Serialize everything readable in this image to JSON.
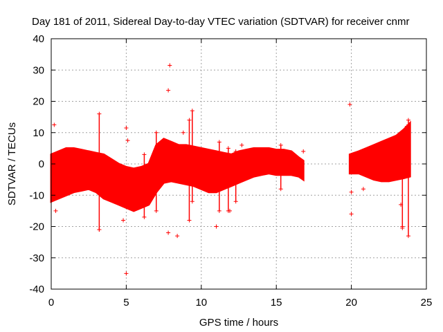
{
  "chart_data": {
    "type": "scatter",
    "title": "Day 181 of 2011, Sidereal Day-to-day VTEC variation (SDTVAR) for receiver cnmr",
    "xlabel": "GPS time / hours",
    "ylabel": "SDTVAR / TECUs",
    "xlim": [
      0,
      25
    ],
    "ylim": [
      -40,
      40
    ],
    "xticks": [
      0,
      5,
      10,
      15,
      20,
      25
    ],
    "yticks": [
      -40,
      -30,
      -20,
      -10,
      0,
      10,
      20,
      30,
      40
    ],
    "grid": true,
    "marker": "+",
    "series": [
      {
        "name": "SDTVAR",
        "color": "#ff0000",
        "envelope": {
          "x": [
            0,
            0.5,
            1,
            1.5,
            2,
            2.5,
            3,
            3.5,
            4,
            4.5,
            5,
            5.5,
            6,
            6.5,
            7,
            7.5,
            8,
            8.5,
            9,
            9.5,
            10,
            10.5,
            11,
            11.5,
            12,
            12.5,
            13,
            13.5,
            14,
            14.5,
            15,
            15.5,
            16,
            16.5,
            16.8
          ],
          "upper": [
            3,
            4,
            5,
            5,
            4.5,
            4,
            3.5,
            3,
            1.5,
            0,
            -1,
            -1.5,
            -1,
            0,
            6,
            8,
            7,
            6,
            6,
            5.5,
            5,
            4.5,
            4,
            3.5,
            3,
            4,
            4.5,
            5,
            5,
            5,
            4.5,
            4.5,
            4,
            2,
            1
          ],
          "lower": [
            -12,
            -11,
            -10,
            -9,
            -8.5,
            -8,
            -9,
            -11,
            -12,
            -13,
            -14,
            -15,
            -14,
            -13,
            -9,
            -6,
            -5.5,
            -6,
            -6.5,
            -7,
            -8,
            -9,
            -9,
            -8,
            -7,
            -6,
            -5,
            -4,
            -3.5,
            -3,
            -3.5,
            -3.5,
            -3.5,
            -4,
            -5
          ]
        },
        "envelope2": {
          "x": [
            19.9,
            20.5,
            21,
            21.5,
            22,
            22.5,
            23,
            23.5,
            23.9
          ],
          "upper": [
            3,
            4,
            5,
            6,
            7,
            8,
            9,
            11,
            13
          ],
          "lower": [
            -3,
            -3,
            -4,
            -5,
            -5.5,
            -5.5,
            -5,
            -4.5,
            -4
          ]
        },
        "spikes": [
          [
            3.2,
            16,
            -21
          ],
          [
            6.2,
            3,
            -17
          ],
          [
            7.0,
            10,
            -15
          ],
          [
            9.2,
            14,
            -18
          ],
          [
            9.4,
            17,
            -12
          ],
          [
            11.2,
            7,
            -15
          ],
          [
            11.8,
            5,
            -15
          ],
          [
            12.3,
            4,
            -12
          ],
          [
            15.3,
            6,
            -8
          ],
          [
            23.4,
            5,
            -20
          ],
          [
            23.8,
            14,
            -23
          ]
        ],
        "outliers": [
          [
            0.2,
            12.5
          ],
          [
            0.3,
            -15
          ],
          [
            3.2,
            -21
          ],
          [
            4.8,
            -18
          ],
          [
            5.0,
            11.5
          ],
          [
            5.0,
            -35
          ],
          [
            5.1,
            7.5
          ],
          [
            7.8,
            23.5
          ],
          [
            7.9,
            31.5
          ],
          [
            7.8,
            -22
          ],
          [
            8.4,
            -23
          ],
          [
            8.8,
            10
          ],
          [
            11.0,
            -20
          ],
          [
            11.9,
            -15
          ],
          [
            12.7,
            6
          ],
          [
            16.8,
            4
          ],
          [
            19.9,
            19
          ],
          [
            20.0,
            -9
          ],
          [
            20.0,
            -16
          ],
          [
            20.8,
            -8
          ],
          [
            23.3,
            -13
          ],
          [
            23.4,
            -20.5
          ],
          [
            23.7,
            12
          ]
        ]
      }
    ]
  }
}
